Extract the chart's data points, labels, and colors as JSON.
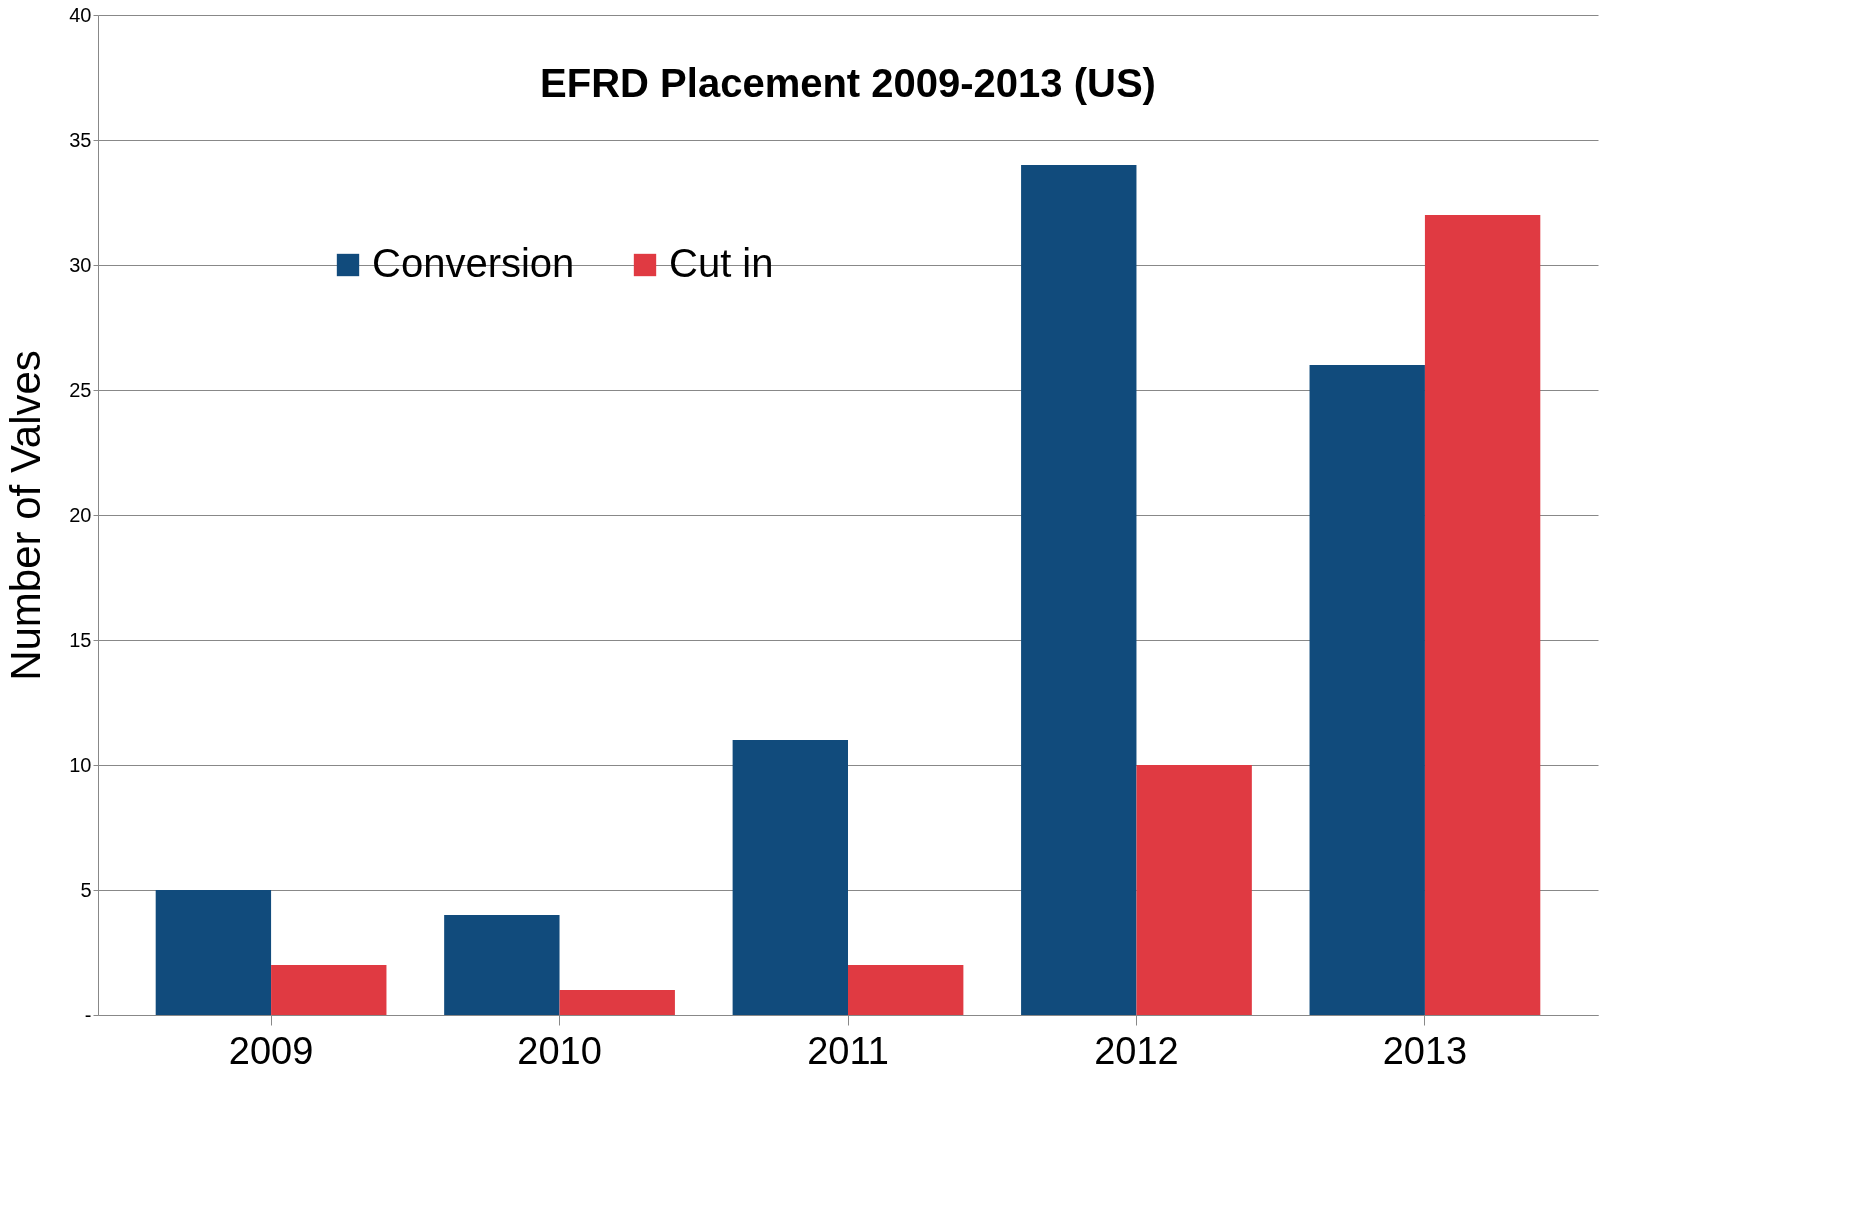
{
  "chart_data": {
    "type": "bar",
    "title": "EFRD  Placement 2009-2013 (US)",
    "ylabel": "Number of Valves",
    "categories": [
      "2009",
      "2010",
      "2011",
      "2012",
      "2013"
    ],
    "series": [
      {
        "name": "Conversion",
        "color": "#114b7c",
        "values": [
          5,
          4,
          11,
          34,
          26
        ]
      },
      {
        "name": "Cut in",
        "color": "#e03a42",
        "values": [
          2,
          1,
          2,
          10,
          32
        ]
      }
    ],
    "ylim": [
      0,
      40
    ],
    "yticks": [
      {
        "value": 0,
        "label": "-"
      },
      5,
      10,
      15,
      20,
      25,
      30,
      35,
      40
    ],
    "grid": "y",
    "legend": "top left"
  }
}
